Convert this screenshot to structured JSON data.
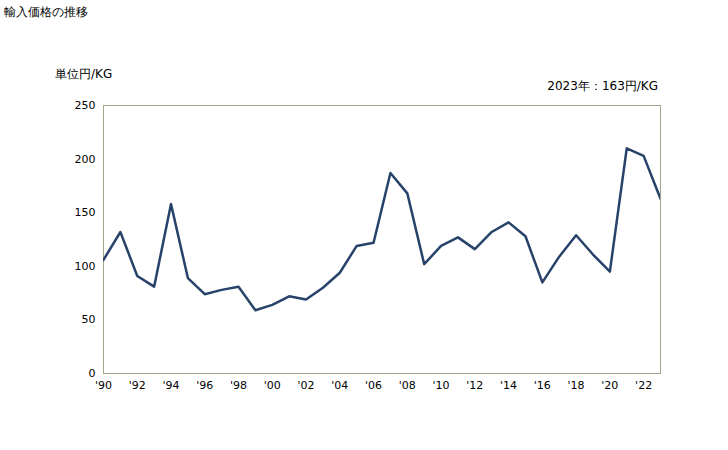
{
  "chart_data": {
    "type": "line",
    "title": "輸入価格の推移",
    "y_label": "単位円/KG",
    "annotation": "2023年：163円/KG",
    "x": [
      1990,
      1991,
      1992,
      1993,
      1994,
      1995,
      1996,
      1997,
      1998,
      1999,
      2000,
      2001,
      2002,
      2003,
      2004,
      2005,
      2006,
      2007,
      2008,
      2009,
      2010,
      2011,
      2012,
      2013,
      2014,
      2015,
      2016,
      2017,
      2018,
      2019,
      2020,
      2021,
      2022,
      2023
    ],
    "values": [
      106,
      132,
      91,
      81,
      158,
      89,
      74,
      78,
      81,
      59,
      64,
      72,
      69,
      80,
      94,
      119,
      122,
      187,
      168,
      102,
      119,
      127,
      116,
      132,
      141,
      128,
      85,
      109,
      129,
      111,
      95,
      210,
      203,
      163
    ],
    "color": "#27436a",
    "xlim": [
      1990,
      2023
    ],
    "xticks": [
      {
        "value": 1990,
        "label": "'90"
      },
      {
        "value": 1992,
        "label": "'92"
      },
      {
        "value": 1994,
        "label": "'94"
      },
      {
        "value": 1996,
        "label": "'96"
      },
      {
        "value": 1998,
        "label": "'98"
      },
      {
        "value": 2000,
        "label": "'00"
      },
      {
        "value": 2002,
        "label": "'02"
      },
      {
        "value": 2004,
        "label": "'04"
      },
      {
        "value": 2006,
        "label": "'06"
      },
      {
        "value": 2008,
        "label": "'08"
      },
      {
        "value": 2010,
        "label": "'10"
      },
      {
        "value": 2012,
        "label": "'12"
      },
      {
        "value": 2014,
        "label": "'14"
      },
      {
        "value": 2016,
        "label": "'16"
      },
      {
        "value": 2018,
        "label": "'18"
      },
      {
        "value": 2020,
        "label": "'20"
      },
      {
        "value": 2022,
        "label": "'22"
      }
    ],
    "ylim": [
      0,
      250
    ],
    "yticks": [
      0,
      50,
      100,
      150,
      200,
      250
    ],
    "grid": false
  }
}
